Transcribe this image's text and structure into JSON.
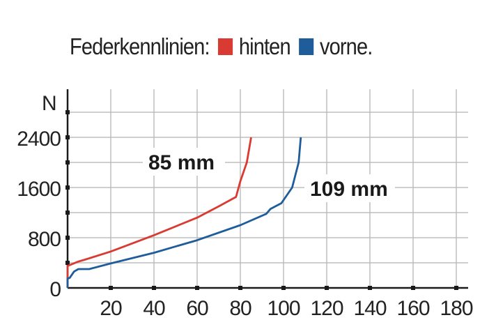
{
  "chart_data": {
    "type": "line",
    "title": "Federkennlinien:",
    "ylabel": "N",
    "xlabel": "",
    "xlim": [
      0,
      180
    ],
    "ylim": [
      0,
      2800
    ],
    "x_ticks": [
      20,
      40,
      60,
      80,
      100,
      120,
      140,
      160,
      180
    ],
    "y_ticks": [
      0,
      800,
      1600,
      2400
    ],
    "grid": true,
    "legend_placement": "top",
    "series": [
      {
        "name": "hinten",
        "color": "#d93a32",
        "x": [
          0,
          0,
          5,
          8,
          20,
          40,
          60,
          70,
          78,
          80,
          83,
          85
        ],
        "y": [
          0,
          350,
          420,
          450,
          580,
          840,
          1120,
          1300,
          1450,
          1700,
          2000,
          2400
        ]
      },
      {
        "name": "vorne.",
        "color": "#1f5c9a",
        "x": [
          0,
          0,
          1,
          3,
          5,
          10,
          20,
          40,
          60,
          80,
          92,
          94,
          99,
          102,
          104,
          107,
          108
        ],
        "y": [
          0,
          150,
          160,
          260,
          300,
          300,
          390,
          560,
          760,
          1000,
          1180,
          1260,
          1350,
          1500,
          1600,
          2000,
          2400
        ]
      }
    ],
    "annotations": [
      "85 mm",
      "109 mm"
    ]
  }
}
